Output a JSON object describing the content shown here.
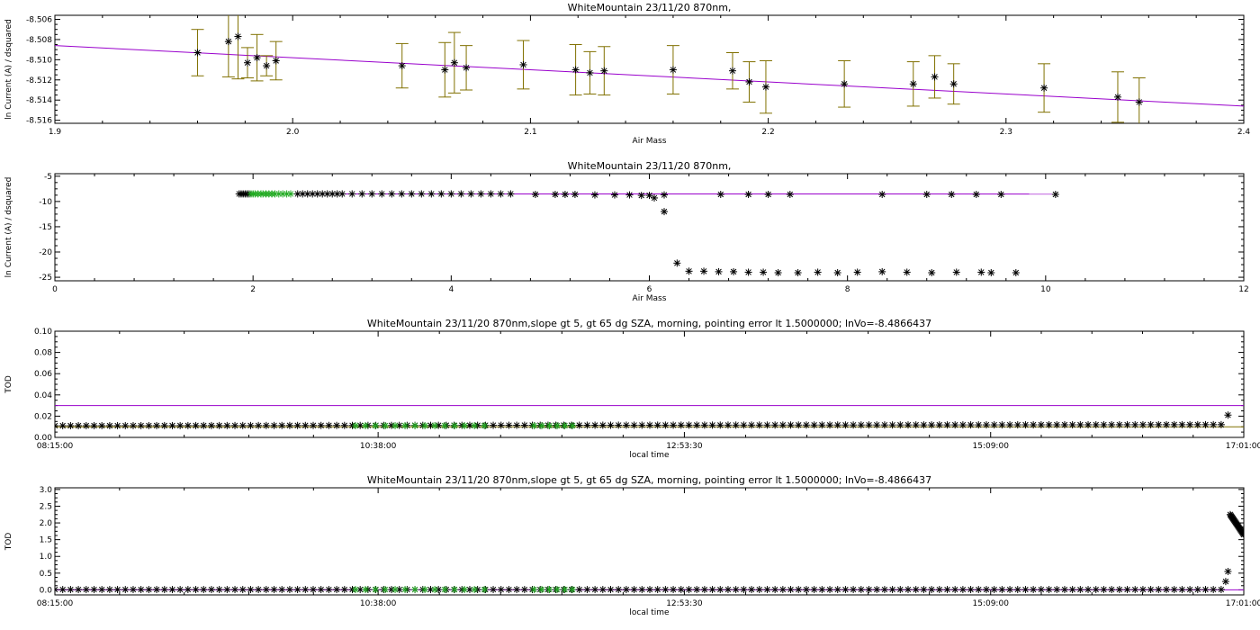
{
  "chart_data": [
    {
      "type": "scatter",
      "title": "WhiteMountain 23/11/20 870nm,",
      "xlabel": "Air Mass",
      "ylabel": "ln Current (A) / dsquared",
      "xlim": [
        1.9,
        2.4
      ],
      "ylim": [
        -8.5163,
        -8.5056
      ],
      "xticks": [
        1.9,
        2.0,
        2.1,
        2.2,
        2.3,
        2.4
      ],
      "xticklabels": [
        "1.9",
        "2.0",
        "2.1",
        "2.2",
        "2.3",
        "2.4"
      ],
      "yticks": [
        -8.516,
        -8.514,
        -8.512,
        -8.51,
        -8.508,
        -8.506
      ],
      "yticklabels": [
        "-8.516",
        "-8.514",
        "-8.512",
        "-8.510",
        "-8.508",
        "-8.506"
      ],
      "grid": false,
      "fit_line": {
        "name": "",
        "color": "#9900cc",
        "x": [
          1.9,
          2.4
        ],
        "y": [
          -8.5086,
          -8.5146
        ]
      },
      "series": [
        {
          "name": "",
          "color": "#000000",
          "errorbar_color": "#807000",
          "x": [
            1.96,
            1.973,
            1.977,
            1.981,
            1.985,
            1.989,
            1.993,
            2.046,
            2.064,
            2.068,
            2.073,
            2.097,
            2.119,
            2.125,
            2.131,
            2.16,
            2.185,
            2.192,
            2.199,
            2.232,
            2.261,
            2.27,
            2.278,
            2.316,
            2.347,
            2.356
          ],
          "y": [
            -8.5093,
            -8.5082,
            -8.5077,
            -8.5103,
            -8.5098,
            -8.5106,
            -8.5101,
            -8.5106,
            -8.511,
            -8.5103,
            -8.5108,
            -8.5105,
            -8.511,
            -8.5113,
            -8.5111,
            -8.511,
            -8.5111,
            -8.5122,
            -8.5127,
            -8.5124,
            -8.5124,
            -8.5117,
            -8.5124,
            -8.5128,
            -8.5137,
            -8.5142
          ],
          "err": [
            0.0023,
            0.0035,
            0.0042,
            0.0015,
            0.0023,
            0.001,
            0.0019,
            0.0022,
            0.0027,
            0.003,
            0.0022,
            0.0024,
            0.0025,
            0.0021,
            0.0024,
            0.0024,
            0.0018,
            0.002,
            0.0026,
            0.0023,
            0.0022,
            0.0021,
            0.002,
            0.0024,
            0.0025,
            0.0024
          ]
        }
      ]
    },
    {
      "type": "scatter",
      "title": "WhiteMountain 23/11/20 870nm,",
      "xlabel": "Air Mass",
      "ylabel": "ln Current (A) / dsquared",
      "xlim": [
        0,
        12
      ],
      "ylim": [
        -25.7,
        -4.5
      ],
      "xticks": [
        0,
        2,
        4,
        6,
        8,
        10,
        12
      ],
      "xticklabels": [
        "0",
        "2",
        "4",
        "6",
        "8",
        "10",
        "12"
      ],
      "yticks": [
        -25,
        -20,
        -15,
        -10,
        -5
      ],
      "yticklabels": [
        "-25",
        "-20",
        "-15",
        "-10",
        "-5"
      ],
      "grid": false,
      "fit_line": {
        "name": "",
        "color": "#9900cc",
        "x": [
          1.9,
          10.1
        ],
        "y": [
          -8.51,
          -8.52
        ]
      },
      "series": [
        {
          "name": "",
          "color": "#000000",
          "x": [
            1.86,
            1.88,
            1.9,
            1.92,
            1.94,
            1.96,
            2.45,
            2.5,
            2.55,
            2.6,
            2.65,
            2.7,
            2.75,
            2.8,
            2.85,
            2.9,
            3.0,
            3.1,
            3.2,
            3.3,
            3.4,
            3.5,
            3.6,
            3.7,
            3.8,
            3.9,
            4.0,
            4.1,
            4.2,
            4.3,
            4.4,
            4.5,
            4.6,
            4.85,
            5.05,
            5.15,
            5.25,
            5.45,
            5.65,
            5.8,
            5.92,
            6.0,
            6.05,
            6.15,
            6.72,
            7.0,
            7.2,
            7.42,
            8.35,
            8.8,
            9.05,
            9.3,
            9.55,
            10.1
          ],
          "y": [
            -8.5,
            -8.5,
            -8.5,
            -8.5,
            -8.5,
            -8.5,
            -8.5,
            -8.5,
            -8.5,
            -8.5,
            -8.5,
            -8.5,
            -8.5,
            -8.5,
            -8.5,
            -8.5,
            -8.5,
            -8.5,
            -8.5,
            -8.5,
            -8.5,
            -8.5,
            -8.5,
            -8.5,
            -8.5,
            -8.5,
            -8.5,
            -8.5,
            -8.5,
            -8.5,
            -8.5,
            -8.5,
            -8.5,
            -8.6,
            -8.6,
            -8.6,
            -8.6,
            -8.7,
            -8.7,
            -8.7,
            -8.8,
            -8.8,
            -9.3,
            -8.7,
            -8.6,
            -8.6,
            -8.6,
            -8.6,
            -8.6,
            -8.6,
            -8.6,
            -8.6,
            -8.6,
            -8.6
          ]
        },
        {
          "name": "",
          "color": "#000000",
          "x": [
            6.15,
            6.28,
            6.4,
            6.55,
            6.7,
            6.85,
            7.0,
            7.15,
            7.3,
            7.5,
            7.7,
            7.9,
            8.1,
            8.35,
            8.6,
            8.85,
            9.1,
            9.35,
            9.45,
            9.7
          ],
          "y": [
            -12.0,
            -22.2,
            -23.8,
            -23.8,
            -23.9,
            -23.9,
            -24.0,
            -24.0,
            -24.1,
            -24.1,
            -24.0,
            -24.1,
            -24.0,
            -23.9,
            -24.0,
            -24.1,
            -24.0,
            -24.0,
            -24.1,
            -24.1
          ]
        },
        {
          "name": "",
          "color": "#22aa22",
          "x": [
            1.98,
            2.0,
            2.02,
            2.05,
            2.08,
            2.1,
            2.13,
            2.16,
            2.19,
            2.22,
            2.26,
            2.3,
            2.34,
            2.38
          ],
          "y": [
            -8.5,
            -8.5,
            -8.5,
            -8.5,
            -8.5,
            -8.5,
            -8.5,
            -8.5,
            -8.5,
            -8.5,
            -8.5,
            -8.5,
            -8.5,
            -8.5
          ]
        }
      ]
    },
    {
      "type": "scatter",
      "title": "WhiteMountain 23/11/20 870nm,slope gt 5, gt 65 dg SZA, morning, pointing error lt 1.5000000; lnVo=-8.4866437",
      "xlabel": "local time",
      "ylabel": "TOD",
      "xlim": [
        "08:15:00",
        "17:01:00"
      ],
      "ylim": [
        0.0,
        0.1
      ],
      "xticks": [
        "08:15:00",
        "10:38:00",
        "12:53:30",
        "15:09:00",
        "17:01:00"
      ],
      "xticklabels": [
        "08:15:00",
        "10:38:00",
        "12:53:30",
        "15:09:00",
        "17:01:00"
      ],
      "yticks": [
        0.0,
        0.02,
        0.04,
        0.06,
        0.08,
        0.1
      ],
      "yticklabels": [
        "0.00",
        "0.02",
        "0.04",
        "0.06",
        "0.08",
        "0.10"
      ],
      "grid": false,
      "hlines": [
        {
          "name": "",
          "color": "#9900cc",
          "y": 0.03
        },
        {
          "name": "",
          "color": "#807000",
          "y": 0.01
        }
      ],
      "series": [
        {
          "name": "",
          "color": "#000000",
          "x_range": [
            "08:15:00",
            "16:51:00"
          ],
          "count": 150,
          "y_start": 0.011,
          "y_end": 0.012
        },
        {
          "name": "",
          "color": "#22aa22",
          "x_range": [
            "10:28:00",
            "11:25:00"
          ],
          "count": 14,
          "y_start": 0.011,
          "y_end": 0.011
        },
        {
          "name": "",
          "color": "#22aa22",
          "x_range": [
            "11:47:00",
            "12:04:00"
          ],
          "count": 6,
          "y_start": 0.011,
          "y_end": 0.011
        },
        {
          "name": "",
          "color": "#000000",
          "x": [
            "16:54:00"
          ],
          "y": [
            0.021
          ]
        }
      ]
    },
    {
      "type": "scatter",
      "title": "WhiteMountain 23/11/20 870nm,slope gt 5, gt 65 dg SZA, morning, pointing error lt 1.5000000; lnVo=-8.4866437",
      "xlabel": "local time",
      "ylabel": "TOD",
      "xlim": [
        "08:15:00",
        "17:01:00"
      ],
      "ylim": [
        -0.15,
        3.05
      ],
      "xticks": [
        "08:15:00",
        "10:38:00",
        "12:53:30",
        "15:09:00",
        "17:01:00"
      ],
      "xticklabels": [
        "08:15:00",
        "10:38:00",
        "12:53:30",
        "15:09:00",
        "17:01:00"
      ],
      "yticks": [
        0.0,
        0.5,
        1.0,
        1.5,
        2.0,
        2.5,
        3.0
      ],
      "yticklabels": [
        "0.0",
        "0.5",
        "1.0",
        "1.5",
        "2.0",
        "2.5",
        "3.0"
      ],
      "grid": false,
      "hlines": [
        {
          "name": "",
          "color": "#9900cc",
          "y": 0.0
        }
      ],
      "series": [
        {
          "name": "",
          "color": "#000000",
          "x_range": [
            "08:15:00",
            "16:51:00"
          ],
          "count": 150,
          "y_start": 0.01,
          "y_end": 0.01
        },
        {
          "name": "",
          "color": "#22aa22",
          "x_range": [
            "10:28:00",
            "11:25:00"
          ],
          "count": 14,
          "y_start": 0.01,
          "y_end": 0.01
        },
        {
          "name": "",
          "color": "#22aa22",
          "x_range": [
            "11:47:00",
            "12:04:00"
          ],
          "count": 6,
          "y_start": 0.01,
          "y_end": 0.01
        },
        {
          "name": "",
          "color": "#000000",
          "x": [
            "16:53:00",
            "16:54:00"
          ],
          "y": [
            0.25,
            0.55
          ]
        },
        {
          "name": "",
          "color": "#000000",
          "x_range": [
            "16:55:00",
            "17:01:00"
          ],
          "count": 22,
          "y_start": 2.25,
          "y_end": 1.65
        }
      ]
    }
  ]
}
